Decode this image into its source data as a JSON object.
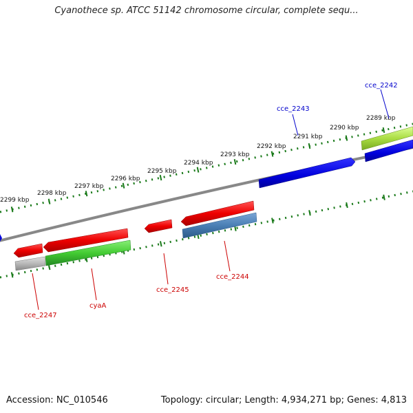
{
  "title": "Cyanothece sp. ATCC 51142 chromosome circular, complete sequ...",
  "footer": {
    "accession": "Accession: NC_010546",
    "summary": "Topology: circular; Length: 4,934,271 bp; Genes: 4,813"
  },
  "ruler": {
    "labels": [
      "2299 kbp",
      "2298 kbp",
      "2297 kbp",
      "2296 kbp",
      "2295 kbp",
      "2294 kbp",
      "2293 kbp",
      "2292 kbp",
      "2291 kbp",
      "2290 kbp",
      "2289 kbp"
    ]
  },
  "genes": {
    "cce_2242": "cce_2242",
    "cce_2243": "cce_2243",
    "cce_2244": "cce_2244",
    "cce_2245": "cce_2245",
    "cyaA": "cyaA",
    "cce_2247": "cce_2247"
  },
  "colors": {
    "forward_gene": "#0000e6",
    "reverse_gene": "#ee0000",
    "rna_gene": "#44cc33",
    "pseudo_gene": "#4a7fb5",
    "partial_gene": "#aadd44",
    "other_gene": "#b0b0b0",
    "ruler_ticks": "#1a7a1a",
    "backbone": "#888888"
  }
}
